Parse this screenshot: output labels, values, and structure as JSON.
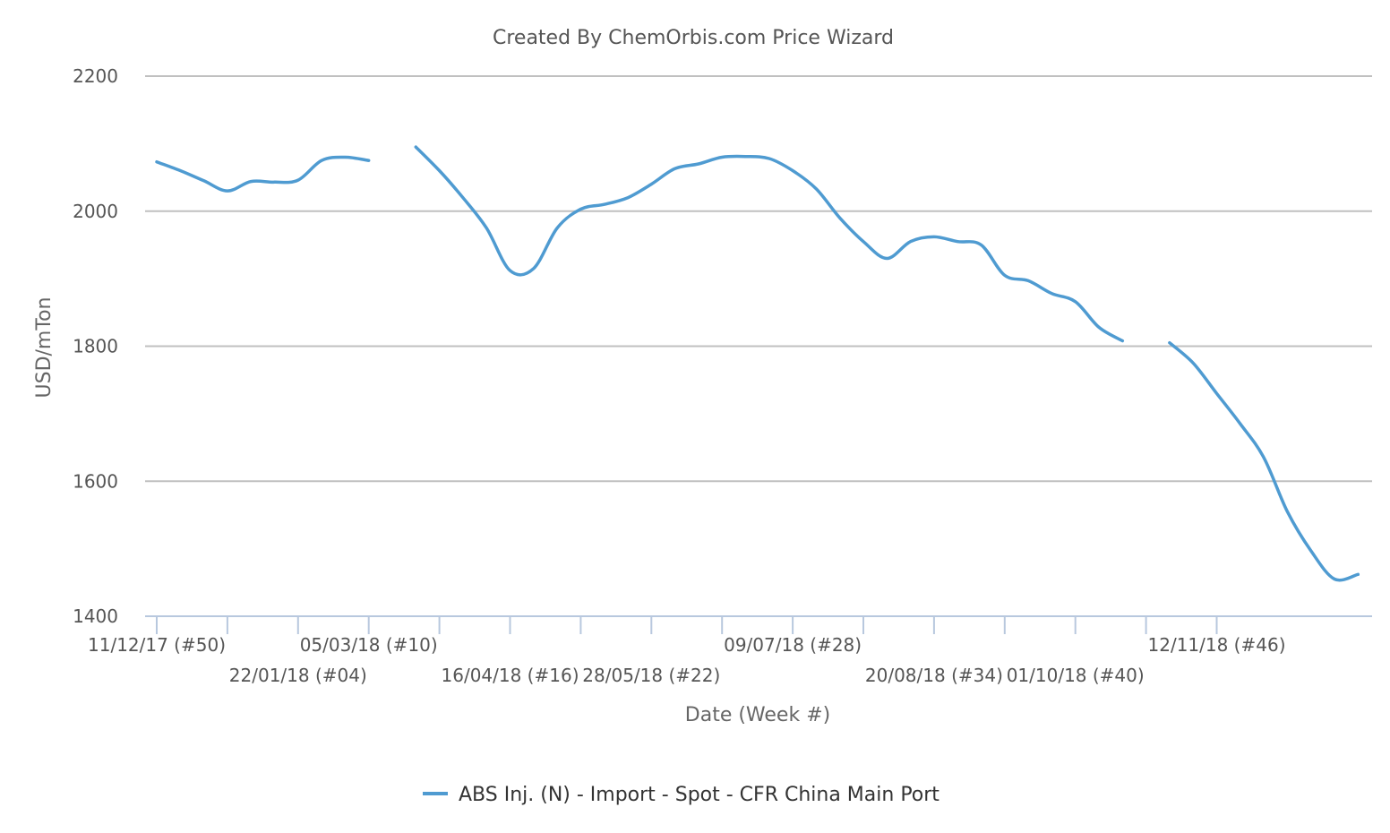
{
  "chart_data": {
    "type": "line",
    "title": "Created By ChemOrbis.com Price Wizard",
    "xlabel": "Date (Week #)",
    "ylabel": "USD/mTon",
    "ylim": [
      1400,
      2200
    ],
    "yticks": [
      1400,
      1600,
      1800,
      2000,
      2200
    ],
    "grid": true,
    "legend_position": "bottom",
    "xticks": [
      {
        "week": 0,
        "label": "11/12/17 (#50)"
      },
      {
        "week": 3,
        "label": ""
      },
      {
        "week": 6,
        "label": "22/01/18 (#04)"
      },
      {
        "week": 9,
        "label": "05/03/18 (#10)"
      },
      {
        "week": 12,
        "label": ""
      },
      {
        "week": 15,
        "label": "16/04/18 (#16)"
      },
      {
        "week": 18,
        "label": ""
      },
      {
        "week": 21,
        "label": "28/05/18 (#22)"
      },
      {
        "week": 24,
        "label": ""
      },
      {
        "week": 27,
        "label": "09/07/18 (#28)"
      },
      {
        "week": 30,
        "label": ""
      },
      {
        "week": 33,
        "label": "20/08/18 (#34)"
      },
      {
        "week": 36,
        "label": ""
      },
      {
        "week": 39,
        "label": "01/10/18 (#40)"
      },
      {
        "week": 42,
        "label": ""
      },
      {
        "week": 45,
        "label": "12/11/18 (#46)"
      }
    ],
    "series": [
      {
        "name": "ABS Inj. (N) - Import - Spot - CFR China Main Port",
        "color": "#4f9bd1",
        "points": [
          [
            0,
            2073
          ],
          [
            1,
            2060
          ],
          [
            2,
            2045
          ],
          [
            3,
            2030
          ],
          [
            4,
            2044
          ],
          [
            5,
            2043
          ],
          [
            6,
            2046
          ],
          [
            7,
            2075
          ],
          [
            8,
            2080
          ],
          [
            9,
            2075
          ],
          [
            11,
            2095
          ],
          [
            12,
            2060
          ],
          [
            13,
            2020
          ],
          [
            14,
            1975
          ],
          [
            15,
            1912
          ],
          [
            16,
            1915
          ],
          [
            17,
            1975
          ],
          [
            18,
            2003
          ],
          [
            19,
            2010
          ],
          [
            20,
            2020
          ],
          [
            21,
            2040
          ],
          [
            22,
            2063
          ],
          [
            23,
            2070
          ],
          [
            24,
            2080
          ],
          [
            25,
            2081
          ],
          [
            26,
            2078
          ],
          [
            27,
            2060
          ],
          [
            28,
            2033
          ],
          [
            29,
            1990
          ],
          [
            30,
            1955
          ],
          [
            31,
            1930
          ],
          [
            32,
            1955
          ],
          [
            33,
            1962
          ],
          [
            34,
            1955
          ],
          [
            35,
            1950
          ],
          [
            36,
            1905
          ],
          [
            37,
            1897
          ],
          [
            38,
            1878
          ],
          [
            39,
            1866
          ],
          [
            40,
            1828
          ],
          [
            41,
            1808
          ],
          [
            43,
            1805
          ],
          [
            44,
            1775
          ],
          [
            45,
            1730
          ],
          [
            46,
            1685
          ],
          [
            47,
            1635
          ],
          [
            48,
            1555
          ],
          [
            49,
            1497
          ],
          [
            50,
            1455
          ],
          [
            51,
            1462
          ]
        ]
      }
    ]
  }
}
